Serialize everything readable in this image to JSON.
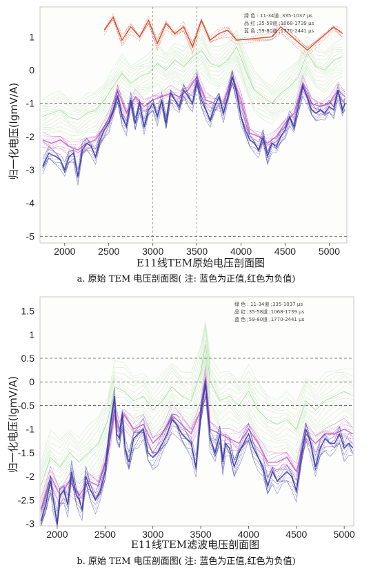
{
  "charts": [
    {
      "type": "line",
      "xlabel": "E11线TEM原始电压剖面图",
      "ylabel": "归一化电压(lgmV/A)",
      "caption": "a. 原始 TEM 电压剖面图( 注: 蓝色为正值,红色为负值)",
      "xlim": [
        1720,
        5200
      ],
      "ylim": [
        -5.2,
        1.9
      ],
      "xticks": [
        2000,
        2500,
        3000,
        3500,
        4000,
        4500,
        5000
      ],
      "yticks": [
        1,
        0,
        -1,
        -2,
        -3,
        -4,
        -5
      ],
      "ytick_labels": [
        "1",
        "0",
        "-1",
        "-2",
        "-3",
        "-4",
        "-5"
      ],
      "hlines": [
        -1,
        -5
      ],
      "vlines": [
        3000,
        3500
      ],
      "legend": [
        "绿 色 : 11-34道 ;335-1037 μs",
        "品 红 ;35-58道 ;1068-1739 μs",
        "蓝 色 ;59-80道 ;1770-2441 μs"
      ],
      "colors": {
        "green": "#9fd89a",
        "magenta": "#cc66cc",
        "blue": "#3c3ca8",
        "red": "#d8442a"
      }
    },
    {
      "type": "line",
      "xlabel": "E11线TEM滤波电压剖面图",
      "ylabel": "归一化电压(lgmV/A)",
      "caption": "b. 原始 TEM 电压剖面图( 注: 蓝色为正值,红色为负值)",
      "xlim": [
        1820,
        5100
      ],
      "ylim": [
        -3.05,
        1.8
      ],
      "xticks": [
        2000,
        2500,
        3000,
        3500,
        4000,
        4500,
        5000
      ],
      "yticks": [
        1.5,
        1,
        0.5,
        0,
        -0.5,
        -1,
        -1.5,
        -2,
        -2.5,
        -3
      ],
      "ytick_labels": [
        "1.5",
        "1",
        "0.5",
        "0",
        "-0.5",
        "-1",
        "-1.5",
        "-2",
        "-2.5",
        "-3"
      ],
      "hlines": [
        0.5,
        0,
        -0.5
      ],
      "vlines": [],
      "legend": [
        "绿 色 : 11-34道 ;335-1037 μs",
        "品 红 ;35-58道 ;1068-1739 μs",
        "蓝 色 ;59-80道 ;1770-2441 μs"
      ],
      "colors": {
        "green": "#9fd89a",
        "magenta": "#cc66cc",
        "blue": "#3c3ca8",
        "red": "#d8442a"
      }
    }
  ],
  "chart_data": [
    {
      "type": "line",
      "series": [
        {
          "name": "蓝 色 ;59-80道 ;1770-2441 μs",
          "x": [
            1750,
            1820,
            1900,
            1950,
            2000,
            2050,
            2100,
            2150,
            2200,
            2250,
            2300,
            2350,
            2400,
            2450,
            2500,
            2550,
            2600,
            2650,
            2700,
            2750,
            2800,
            2850,
            2900,
            2950,
            3000,
            3050,
            3100,
            3150,
            3200,
            3250,
            3300,
            3350,
            3400,
            3450,
            3500,
            3550,
            3600,
            3650,
            3700,
            3750,
            3800,
            3850,
            3900,
            3950,
            4000,
            4050,
            4100,
            4150,
            4200,
            4250,
            4300,
            4350,
            4400,
            4450,
            4500,
            4550,
            4600,
            4650,
            4700,
            4750,
            4800,
            4850,
            4900,
            4950,
            5000,
            5050,
            5100,
            5150,
            5180
          ],
          "y": [
            -2.9,
            -2.5,
            -2.6,
            -2.7,
            -3.0,
            -2.6,
            -2.5,
            -3.2,
            -2.4,
            -2.2,
            -2.3,
            -2.6,
            -2.1,
            -1.8,
            -1.6,
            -1.2,
            -0.8,
            -1.4,
            -1.7,
            -0.9,
            -1.6,
            -1.0,
            -1.7,
            -1.2,
            -1.0,
            -1.4,
            -0.9,
            -1.6,
            -0.7,
            -0.9,
            -1.1,
            -0.6,
            -0.8,
            -1.0,
            -0.3,
            -0.9,
            -1.2,
            -1.5,
            -1.1,
            -0.8,
            -1.3,
            -0.8,
            -0.2,
            -0.7,
            -1.4,
            -1.8,
            -2.1,
            -2.2,
            -2.4,
            -2.0,
            -2.6,
            -2.2,
            -2.3,
            -2.0,
            -1.8,
            -1.4,
            -1.7,
            -1.1,
            -0.5,
            -0.8,
            -1.2,
            -1.3,
            -1.2,
            -1.3,
            -1.1,
            -1.2,
            -0.6,
            -1.2,
            -1.0
          ]
        },
        {
          "name": "品 红 ;35-58道 ;1068-1739 μs",
          "x": [
            1750,
            1850,
            1950,
            2050,
            2150,
            2250,
            2350,
            2450,
            2550,
            2600,
            2700,
            2800,
            2900,
            3000,
            3100,
            3200,
            3300,
            3400,
            3500,
            3600,
            3700,
            3800,
            3900,
            4000,
            4100,
            4200,
            4300,
            4400,
            4500,
            4600,
            4700,
            4800,
            4900,
            5000,
            5100,
            5180
          ],
          "y": [
            -2.1,
            -2.2,
            -2.1,
            -2.3,
            -2.4,
            -2.2,
            -2.1,
            -1.7,
            -1.2,
            -0.6,
            -1.3,
            -0.8,
            -1.1,
            -0.9,
            -0.8,
            -0.7,
            -0.8,
            -0.6,
            -0.2,
            -0.9,
            -1.0,
            -1.0,
            -0.2,
            -0.9,
            -1.9,
            -2.0,
            -2.2,
            -2.0,
            -1.6,
            -1.3,
            -0.4,
            -1.0,
            -1.1,
            -1.0,
            -0.6,
            -0.8
          ]
        },
        {
          "name": "绿 色 : 11-34道 ;335-1037 μs",
          "x": [
            1750,
            1850,
            1950,
            2050,
            2150,
            2250,
            2350,
            2450,
            2550,
            2650,
            2750,
            2850,
            2950,
            3050,
            3150,
            3250,
            3350,
            3450,
            3550,
            3650,
            3750,
            3850,
            3950,
            4050,
            4150,
            4250,
            4350,
            4450,
            4550,
            4650,
            4750,
            4850,
            4950,
            5050,
            5150
          ],
          "y": [
            -1.4,
            -1.3,
            -1.2,
            -1.4,
            -1.5,
            -1.3,
            -1.2,
            -0.9,
            -0.5,
            -0.1,
            -0.4,
            -0.2,
            -0.1,
            0.2,
            0.0,
            0.3,
            0.1,
            0.4,
            0.6,
            0.2,
            0.1,
            0.3,
            0.7,
            0.0,
            -0.6,
            -0.8,
            -1.0,
            -0.7,
            -0.5,
            -0.2,
            0.5,
            0.1,
            0.0,
            0.3,
            0.4
          ]
        },
        {
          "name": "红 色",
          "x": [
            2450,
            2550,
            2650,
            2750,
            2850,
            2950,
            3050,
            3150,
            3250,
            3350,
            3450,
            3550,
            3650,
            3750,
            3850,
            3950,
            4350,
            4450,
            4750,
            5050,
            5150
          ],
          "y": [
            1.2,
            1.6,
            0.9,
            1.3,
            1.0,
            1.5,
            0.8,
            1.4,
            1.1,
            1.3,
            0.7,
            1.5,
            0.9,
            1.1,
            1.2,
            0.9,
            1.0,
            1.3,
            0.6,
            1.3,
            1.1
          ]
        }
      ]
    },
    {
      "type": "line",
      "series": [
        {
          "name": "蓝 色 ;59-80道 ;1770-2441 μs",
          "x": [
            1830,
            1880,
            1930,
            1960,
            2000,
            2030,
            2070,
            2110,
            2150,
            2200,
            2230,
            2260,
            2300,
            2350,
            2400,
            2450,
            2500,
            2550,
            2600,
            2620,
            2650,
            2680,
            2710,
            2750,
            2800,
            2850,
            2900,
            2950,
            3000,
            3050,
            3100,
            3150,
            3200,
            3250,
            3300,
            3350,
            3400,
            3450,
            3500,
            3550,
            3600,
            3650,
            3700,
            3730,
            3760,
            3800,
            3850,
            3900,
            3950,
            4000,
            4050,
            4100,
            4150,
            4200,
            4250,
            4300,
            4350,
            4400,
            4450,
            4500,
            4550,
            4600,
            4650,
            4700,
            4750,
            4800,
            4850,
            4900,
            4950,
            5000,
            5050,
            5090
          ],
          "y": [
            -2.95,
            -2.6,
            -2.1,
            -2.5,
            -3.0,
            -2.4,
            -2.3,
            -2.6,
            -1.9,
            -2.4,
            -2.5,
            -2.7,
            -2.0,
            -2.3,
            -2.5,
            -2.3,
            -1.9,
            -1.0,
            -0.3,
            -1.1,
            -1.2,
            -0.7,
            -1.4,
            -1.7,
            -1.2,
            -1.1,
            -1.0,
            -1.5,
            -1.6,
            -1.5,
            -1.3,
            -1.1,
            -0.8,
            -0.9,
            -1.1,
            -1.2,
            -1.3,
            -1.8,
            -0.7,
            -0.05,
            -1.2,
            -1.5,
            -1.1,
            -1.7,
            -1.3,
            -1.4,
            -1.8,
            -1.5,
            -1.3,
            -1.1,
            -1.4,
            -1.6,
            -1.8,
            -2.2,
            -1.9,
            -2.1,
            -2.0,
            -1.9,
            -2.0,
            -2.3,
            -1.6,
            -1.0,
            -1.3,
            -1.8,
            -1.4,
            -1.2,
            -1.3,
            -1.3,
            -1.1,
            -1.4,
            -1.3,
            -1.4
          ]
        },
        {
          "name": "品 红 ;35-58道 ;1068-1739 μs",
          "x": [
            1830,
            1930,
            2030,
            2130,
            2230,
            2330,
            2430,
            2530,
            2600,
            2650,
            2700,
            2800,
            2900,
            3000,
            3100,
            3200,
            3300,
            3400,
            3500,
            3550,
            3600,
            3700,
            3800,
            3900,
            4000,
            4100,
            4200,
            4300,
            4400,
            4500,
            4600,
            4700,
            4800,
            4900,
            5000,
            5090
          ],
          "y": [
            -2.7,
            -2.0,
            -2.4,
            -2.1,
            -2.4,
            -2.1,
            -2.2,
            -1.5,
            -0.6,
            -1.0,
            -0.7,
            -1.0,
            -0.9,
            -1.3,
            -1.1,
            -0.7,
            -0.9,
            -1.1,
            -0.6,
            0.1,
            -1.0,
            -1.1,
            -1.2,
            -1.3,
            -1.0,
            -1.3,
            -1.7,
            -1.7,
            -1.6,
            -1.9,
            -1.1,
            -1.3,
            -1.1,
            -1.1,
            -1.0,
            -1.1
          ]
        },
        {
          "name": "绿 色 : 11-34道 ;335-1037 μs",
          "x": [
            1830,
            1930,
            2030,
            2130,
            2230,
            2330,
            2430,
            2530,
            2600,
            2700,
            2800,
            2900,
            3000,
            3100,
            3200,
            3300,
            3400,
            3500,
            3550,
            3600,
            3700,
            3800,
            3900,
            4000,
            4100,
            4200,
            4300,
            4400,
            4500,
            4600,
            4700,
            4800,
            4900,
            5000,
            5090
          ],
          "y": [
            -2.2,
            -1.6,
            -1.8,
            -1.5,
            -1.7,
            -1.5,
            -1.3,
            -0.8,
            -0.1,
            -0.2,
            -0.4,
            -0.3,
            -0.6,
            -0.4,
            -0.1,
            -0.3,
            -0.4,
            0.2,
            0.8,
            0.0,
            -0.4,
            -0.3,
            -0.5,
            -0.2,
            -0.6,
            -0.8,
            -0.9,
            -0.8,
            -1.0,
            -0.4,
            -0.6,
            -0.4,
            -0.3,
            -0.2,
            -0.3
          ]
        }
      ]
    }
  ]
}
